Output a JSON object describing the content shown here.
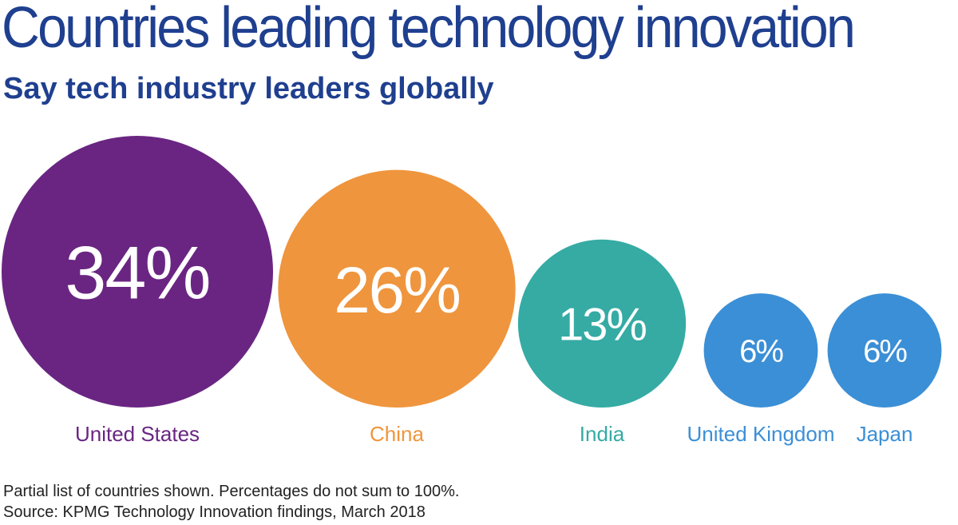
{
  "title": "Countries leading technology innovation",
  "subtitle": "Say tech industry leaders globally",
  "chart_data": {
    "type": "bubble",
    "categories": [
      "United States",
      "China",
      "India",
      "United Kingdom",
      "Japan"
    ],
    "values": [
      34,
      26,
      13,
      6,
      6
    ],
    "value_labels": [
      "34%",
      "26%",
      "13%",
      "6%",
      "6%"
    ],
    "colors": [
      "#6a2582",
      "#ef953d",
      "#35aba4",
      "#3b8fd6",
      "#3b8fd6"
    ]
  },
  "footnotes": {
    "note": "Partial list of countries shown. Percentages do not sum to 100%.",
    "source": "Source: KPMG Technology Innovation findings, March 2018"
  }
}
